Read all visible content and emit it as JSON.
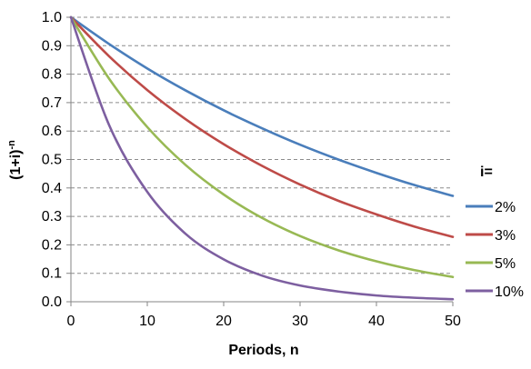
{
  "chart_data": {
    "type": "line",
    "title": "",
    "xlabel": "Periods, n",
    "ylabel": "(1+i)",
    "ylabel_superscript": "-n",
    "xlim": [
      0,
      50
    ],
    "ylim": [
      0,
      1.0
    ],
    "x_ticks": [
      "0",
      "10",
      "20",
      "30",
      "40",
      "50"
    ],
    "y_ticks": [
      "0.0",
      "0.1",
      "0.2",
      "0.3",
      "0.4",
      "0.5",
      "0.6",
      "0.7",
      "0.8",
      "0.9",
      "1.0"
    ],
    "grid": "horizontal dashed",
    "legend_title": "i=",
    "legend_position": "right",
    "x": [
      0,
      5,
      10,
      15,
      20,
      25,
      30,
      35,
      40,
      45,
      50
    ],
    "series": [
      {
        "name": "2%",
        "color": "#4a7ebb",
        "values": [
          1.0,
          0.906,
          0.82,
          0.743,
          0.673,
          0.61,
          0.552,
          0.5,
          0.453,
          0.41,
          0.372
        ]
      },
      {
        "name": "3%",
        "color": "#be4b48",
        "values": [
          1.0,
          0.863,
          0.744,
          0.642,
          0.554,
          0.478,
          0.412,
          0.355,
          0.307,
          0.264,
          0.228
        ]
      },
      {
        "name": "5%",
        "color": "#98b954",
        "values": [
          1.0,
          0.784,
          0.614,
          0.481,
          0.377,
          0.295,
          0.231,
          0.181,
          0.142,
          0.111,
          0.087
        ]
      },
      {
        "name": "10%",
        "color": "#7d5fa0",
        "values": [
          1.0,
          0.621,
          0.386,
          0.239,
          0.149,
          0.092,
          0.057,
          0.036,
          0.022,
          0.014,
          0.009
        ]
      }
    ]
  }
}
